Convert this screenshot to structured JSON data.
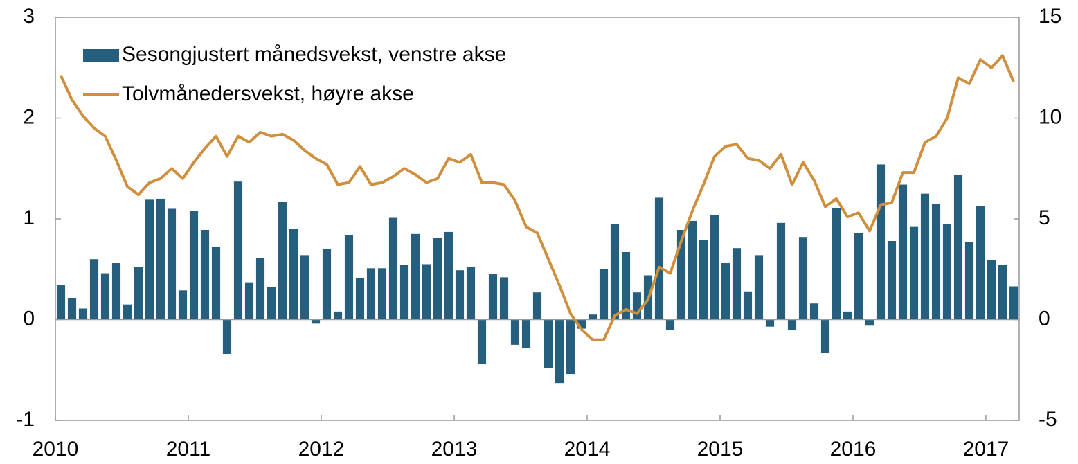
{
  "chart_data": {
    "type": "bar_line",
    "categories": [
      "2010",
      null,
      null,
      null,
      null,
      null,
      null,
      null,
      null,
      null,
      null,
      null,
      "2011",
      null,
      null,
      null,
      null,
      null,
      null,
      null,
      null,
      null,
      null,
      null,
      "2012",
      null,
      null,
      null,
      null,
      null,
      null,
      null,
      null,
      null,
      null,
      null,
      "2013",
      null,
      null,
      null,
      null,
      null,
      null,
      null,
      null,
      null,
      null,
      null,
      "2014",
      null,
      null,
      null,
      null,
      null,
      null,
      null,
      null,
      null,
      null,
      null,
      "2015",
      null,
      null,
      null,
      null,
      null,
      null,
      null,
      null,
      null,
      null,
      null,
      "2016",
      null,
      null,
      null,
      null,
      null,
      null,
      null,
      null,
      null,
      null,
      null,
      "2017",
      null,
      null
    ],
    "series": [
      {
        "name": "Sesongjustert månedsvekst, venstre akse",
        "type": "bar",
        "color": "#265f7e",
        "values": [
          0.34,
          0.21,
          0.11,
          0.6,
          0.46,
          0.56,
          0.15,
          0.52,
          1.19,
          1.2,
          1.1,
          0.29,
          1.08,
          0.89,
          0.72,
          -0.34,
          1.37,
          0.37,
          0.61,
          0.32,
          1.17,
          0.9,
          0.64,
          -0.04,
          0.7,
          0.08,
          0.84,
          0.41,
          0.51,
          0.51,
          1.01,
          0.54,
          0.85,
          0.55,
          0.81,
          0.87,
          0.49,
          0.52,
          -0.44,
          0.45,
          0.42,
          -0.25,
          -0.28,
          0.27,
          -0.48,
          -0.63,
          -0.54,
          -0.09,
          0.05,
          0.5,
          0.95,
          0.67,
          0.27,
          0.44,
          1.21,
          -0.1,
          0.89,
          0.98,
          0.79,
          1.04,
          0.56,
          0.71,
          0.28,
          0.64,
          -0.07,
          0.96,
          -0.1,
          0.82,
          0.16,
          -0.33,
          1.11,
          0.08,
          0.86,
          -0.06,
          1.54,
          0.78,
          1.34,
          0.92,
          1.25,
          1.15,
          0.95,
          1.44,
          0.77,
          1.13,
          0.59,
          0.54,
          0.33
        ]
      },
      {
        "name": "Tolvmånedersvekst, høyre akse",
        "type": "line",
        "axis": "y2",
        "color": "#d08f3d",
        "values": [
          12.1,
          10.9,
          10.1,
          9.5,
          9.1,
          7.9,
          6.6,
          6.2,
          6.8,
          7.0,
          7.5,
          7.0,
          7.8,
          8.5,
          9.1,
          8.1,
          9.1,
          8.8,
          9.3,
          9.1,
          9.2,
          8.9,
          8.4,
          8.0,
          7.7,
          6.7,
          6.8,
          7.6,
          6.7,
          6.8,
          7.1,
          7.5,
          7.2,
          6.8,
          7.0,
          8.0,
          7.8,
          8.2,
          6.8,
          6.8,
          6.7,
          5.9,
          4.6,
          4.3,
          3.0,
          1.7,
          0.3,
          -0.5,
          -1.0,
          -1.0,
          0.2,
          0.5,
          0.3,
          1.0,
          2.6,
          2.3,
          3.9,
          5.4,
          6.7,
          8.1,
          8.6,
          8.7,
          8.0,
          7.9,
          7.5,
          8.2,
          6.7,
          7.8,
          6.9,
          5.6,
          6.0,
          5.1,
          5.3,
          4.4,
          5.7,
          5.8,
          7.3,
          7.3,
          8.8,
          9.1,
          10.0,
          12.0,
          11.7,
          12.9,
          12.5,
          13.1,
          11.8
        ]
      }
    ],
    "ylim": [
      -1,
      3
    ],
    "yticks": [
      -1,
      0,
      1,
      2,
      3
    ],
    "y2lim": [
      -5,
      15
    ],
    "y2ticks": [
      -5,
      0,
      5,
      10,
      15
    ],
    "legend": "top-left"
  }
}
